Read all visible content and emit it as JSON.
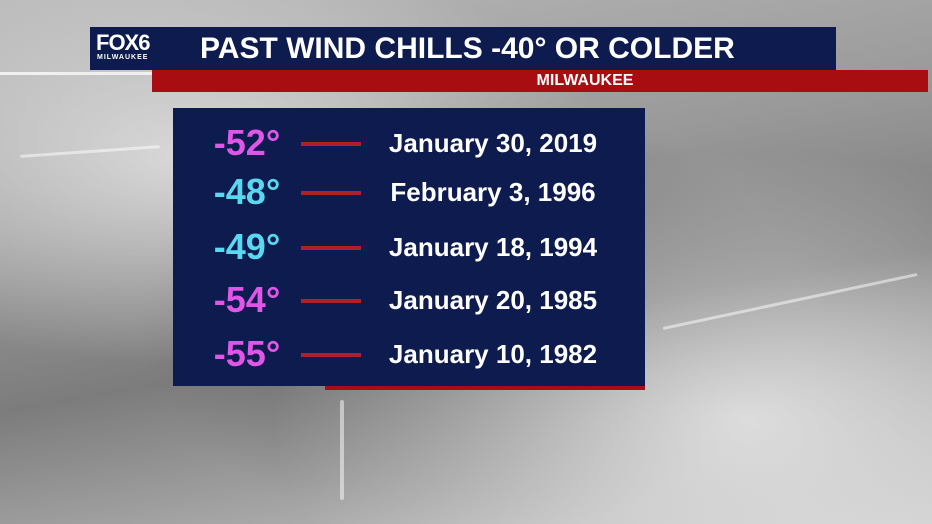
{
  "logo": {
    "brand": "FOX6",
    "city": "MILWAUKEE"
  },
  "header": {
    "title": "PAST WIND CHILLS -40° OR COLDER",
    "subtitle": "MILWAUKEE"
  },
  "colors": {
    "navy": "#0d1b4f",
    "red": "#a80d12",
    "pink": "#e056e8",
    "cyan": "#5ad8f0"
  },
  "rows": [
    {
      "value": "-52°",
      "date": "January 30, 2019",
      "color": "#e056e8"
    },
    {
      "value": "-48°",
      "date": "February 3, 1996",
      "color": "#5ad8f0"
    },
    {
      "value": "-49°",
      "date": "January 18, 1994",
      "color": "#5ad8f0"
    },
    {
      "value": "-54°",
      "date": "January 20, 1985",
      "color": "#e056e8"
    },
    {
      "value": "-55°",
      "date": "January 10, 1982",
      "color": "#e056e8"
    }
  ]
}
